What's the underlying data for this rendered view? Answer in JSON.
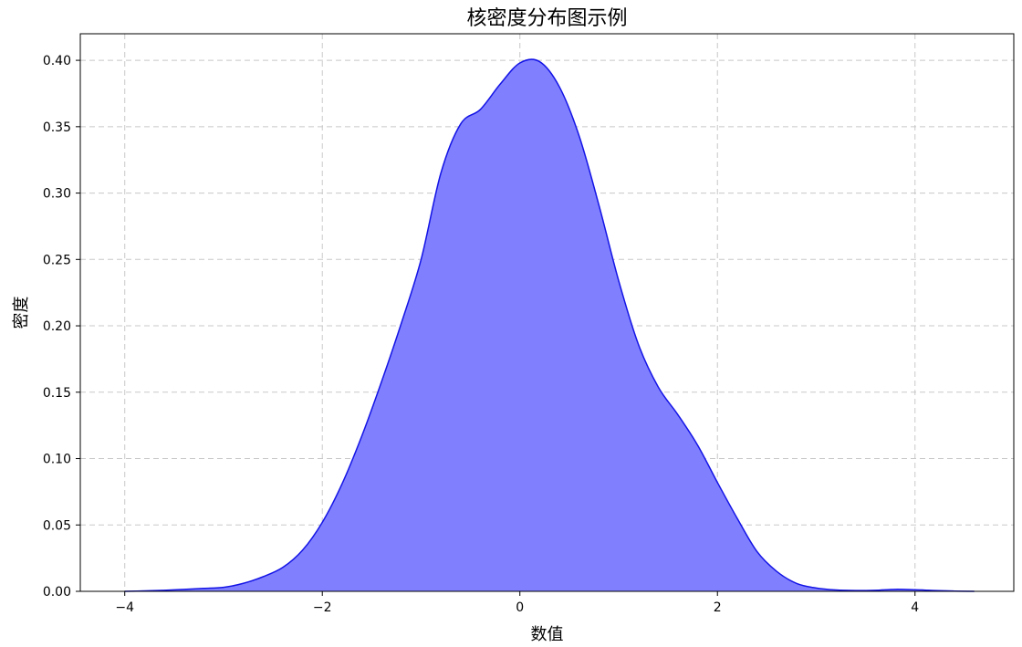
{
  "chart_data": {
    "type": "area",
    "title": "核密度分布图示例",
    "xlabel": "数值",
    "ylabel": "密度",
    "xlim": [
      -4.45,
      5.0
    ],
    "ylim": [
      0.0,
      0.42
    ],
    "x_ticks": [
      -4,
      -2,
      0,
      2,
      4
    ],
    "x_tick_labels": [
      "−4",
      "−2",
      "0",
      "2",
      "4"
    ],
    "y_ticks": [
      0.0,
      0.05,
      0.1,
      0.15,
      0.2,
      0.25,
      0.3,
      0.35,
      0.4
    ],
    "y_tick_labels": [
      "0.00",
      "0.05",
      "0.10",
      "0.15",
      "0.20",
      "0.25",
      "0.30",
      "0.35",
      "0.40"
    ],
    "grid": true,
    "legend": "none",
    "colors": {
      "fill": "#8080ff",
      "line": "#1414e6",
      "grid": "#c8c8c8",
      "axes": "#000000"
    },
    "series": [
      {
        "x": [
          -4.0,
          -3.8,
          -3.6,
          -3.4,
          -3.2,
          -3.0,
          -2.8,
          -2.6,
          -2.4,
          -2.2,
          -2.0,
          -1.8,
          -1.6,
          -1.4,
          -1.2,
          -1.0,
          -0.8,
          -0.6,
          -0.4,
          -0.2,
          0.0,
          0.2,
          0.4,
          0.6,
          0.8,
          1.0,
          1.2,
          1.4,
          1.6,
          1.8,
          2.0,
          2.2,
          2.4,
          2.6,
          2.8,
          3.0,
          3.2,
          3.4,
          3.6,
          3.8,
          4.0,
          4.2,
          4.4,
          4.6
        ],
        "values": [
          0.0,
          0.0003,
          0.0008,
          0.0015,
          0.0022,
          0.003,
          0.006,
          0.011,
          0.018,
          0.031,
          0.052,
          0.081,
          0.117,
          0.158,
          0.202,
          0.25,
          0.315,
          0.352,
          0.363,
          0.382,
          0.398,
          0.399,
          0.38,
          0.343,
          0.291,
          0.234,
          0.186,
          0.154,
          0.133,
          0.11,
          0.082,
          0.055,
          0.03,
          0.015,
          0.006,
          0.0025,
          0.001,
          0.0006,
          0.0008,
          0.0015,
          0.0012,
          0.0006,
          0.0002,
          0.0
        ]
      }
    ]
  }
}
